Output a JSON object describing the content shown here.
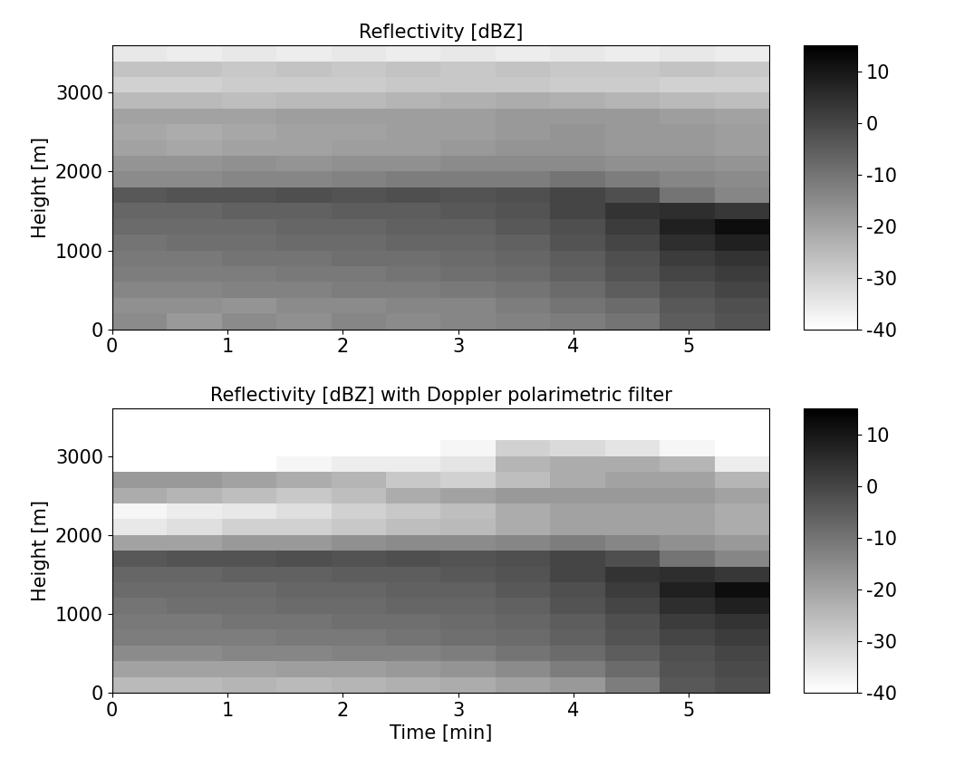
{
  "chart_data": [
    {
      "type": "heatmap",
      "title": "Reflectivity [dBZ]",
      "ylabel": "Height [m]",
      "x": [
        0,
        0.475,
        0.95,
        1.425,
        1.9,
        2.375,
        2.85,
        3.325,
        3.8,
        4.275,
        4.75,
        5.225,
        5.7
      ],
      "y": [
        0,
        200,
        400,
        600,
        800,
        1000,
        1200,
        1400,
        1600,
        1800,
        2000,
        2200,
        2400,
        2600,
        2800,
        3000,
        3200,
        3400,
        3600
      ],
      "cells": [
        [
          -15,
          -18,
          -15,
          -16,
          -14,
          -15,
          -14,
          -13,
          -12,
          -10,
          -5,
          -3
        ],
        [
          -16,
          -16,
          -17,
          -15,
          -15,
          -14,
          -14,
          -12,
          -10,
          -8,
          -4,
          -2
        ],
        [
          -14,
          -14,
          -13,
          -13,
          -12,
          -12,
          -11,
          -10,
          -8,
          -5,
          -2,
          0
        ],
        [
          -12,
          -12,
          -12,
          -11,
          -11,
          -10,
          -9,
          -8,
          -6,
          -3,
          0,
          2
        ],
        [
          -11,
          -11,
          -10,
          -10,
          -9,
          -9,
          -8,
          -7,
          -5,
          -2,
          2,
          4
        ],
        [
          -10,
          -9,
          -9,
          -8,
          -8,
          -7,
          -7,
          -6,
          -3,
          0,
          5,
          8
        ],
        [
          -8,
          -8,
          -8,
          -7,
          -7,
          -6,
          -6,
          -4,
          -2,
          2,
          8,
          12
        ],
        [
          -7,
          -7,
          -6,
          -6,
          -5,
          -5,
          -4,
          -3,
          0,
          4,
          5,
          3
        ],
        [
          -4,
          -3,
          -3,
          -2,
          -3,
          -2,
          -3,
          -2,
          0,
          -2,
          -10,
          -14
        ],
        [
          -15,
          -15,
          -14,
          -14,
          -13,
          -12,
          -12,
          -12,
          -10,
          -12,
          -14,
          -15
        ],
        [
          -17,
          -17,
          -16,
          -17,
          -16,
          -16,
          -15,
          -15,
          -15,
          -16,
          -16,
          -17
        ],
        [
          -20,
          -21,
          -20,
          -20,
          -19,
          -19,
          -18,
          -17,
          -17,
          -18,
          -18,
          -19
        ],
        [
          -21,
          -22,
          -21,
          -20,
          -20,
          -19,
          -19,
          -18,
          -17,
          -18,
          -18,
          -19
        ],
        [
          -20,
          -20,
          -20,
          -19,
          -19,
          -19,
          -19,
          -18,
          -18,
          -18,
          -19,
          -20
        ],
        [
          -25,
          -25,
          -26,
          -25,
          -25,
          -24,
          -23,
          -22,
          -23,
          -24,
          -25,
          -26
        ],
        [
          -30,
          -30,
          -29,
          -29,
          -29,
          -28,
          -28,
          -28,
          -29,
          -29,
          -30,
          -30
        ],
        [
          -27,
          -27,
          -28,
          -27,
          -28,
          -27,
          -28,
          -27,
          -28,
          -28,
          -27,
          -28
        ],
        [
          -35,
          -36,
          -35,
          -36,
          -35,
          -36,
          -35,
          -36,
          -35,
          -36,
          -35,
          -36
        ]
      ],
      "xlim": [
        0,
        5.7
      ],
      "ylim": [
        0,
        3600
      ],
      "xticks": [
        0,
        1,
        2,
        3,
        4,
        5
      ],
      "yticks": [
        0,
        1000,
        2000,
        3000
      ],
      "colorbar_range": [
        -40,
        15
      ],
      "colorbar_ticks": [
        -40,
        -30,
        -20,
        -10,
        0,
        10
      ]
    },
    {
      "type": "heatmap",
      "title": "Reflectivity [dBZ] with Doppler polarimetric filter",
      "xlabel": "Time [min]",
      "ylabel": "Height [m]",
      "x": [
        0,
        0.475,
        0.95,
        1.425,
        1.9,
        2.375,
        2.85,
        3.325,
        3.8,
        4.275,
        4.75,
        5.225,
        5.7
      ],
      "y": [
        0,
        200,
        400,
        600,
        800,
        1000,
        1200,
        1400,
        1600,
        1800,
        2000,
        2200,
        2400,
        2600,
        2800,
        3000,
        3200,
        3400,
        3600
      ],
      "cells": [
        [
          -25,
          -25,
          -24,
          -25,
          -24,
          -23,
          -22,
          -20,
          -18,
          -12,
          -4,
          -2
        ],
        [
          -20,
          -20,
          -20,
          -19,
          -19,
          -18,
          -17,
          -15,
          -12,
          -8,
          -3,
          -1
        ],
        [
          -15,
          -15,
          -14,
          -14,
          -13,
          -13,
          -12,
          -10,
          -8,
          -5,
          -2,
          0
        ],
        [
          -12,
          -12,
          -12,
          -11,
          -11,
          -10,
          -9,
          -8,
          -6,
          -3,
          0,
          2
        ],
        [
          -11,
          -11,
          -10,
          -10,
          -9,
          -9,
          -8,
          -7,
          -5,
          -2,
          2,
          4
        ],
        [
          -10,
          -9,
          -9,
          -8,
          -8,
          -7,
          -7,
          -6,
          -3,
          0,
          5,
          8
        ],
        [
          -8,
          -8,
          -8,
          -7,
          -7,
          -6,
          -6,
          -4,
          -2,
          2,
          8,
          12
        ],
        [
          -7,
          -7,
          -6,
          -6,
          -5,
          -5,
          -4,
          -3,
          0,
          4,
          5,
          3
        ],
        [
          -4,
          -3,
          -3,
          -2,
          -3,
          -2,
          -3,
          -2,
          0,
          -2,
          -10,
          -14
        ],
        [
          -20,
          -20,
          -18,
          -18,
          -16,
          -15,
          -15,
          -14,
          -12,
          -14,
          -16,
          -18
        ],
        [
          -35,
          -33,
          -30,
          -30,
          -28,
          -26,
          -25,
          -22,
          -20,
          -20,
          -20,
          -22
        ],
        [
          -38,
          -36,
          -35,
          -33,
          -30,
          -28,
          -26,
          -22,
          -20,
          -20,
          -20,
          -22
        ],
        [
          -22,
          -24,
          -26,
          -28,
          -26,
          -22,
          -20,
          -18,
          -18,
          -18,
          -18,
          -20
        ],
        [
          -18,
          -18,
          -20,
          -22,
          -24,
          -28,
          -30,
          -26,
          -22,
          -20,
          -20,
          -24
        ],
        [
          -40,
          -40,
          -40,
          -38,
          -36,
          -36,
          -34,
          -24,
          -22,
          -22,
          -24,
          -36
        ],
        [
          -40,
          -40,
          -40,
          -40,
          -40,
          -40,
          -38,
          -30,
          -32,
          -34,
          -38,
          -40
        ],
        [
          -40,
          -40,
          -40,
          -40,
          -40,
          -40,
          -40,
          -40,
          -40,
          -40,
          -40,
          -40
        ],
        [
          -40,
          -40,
          -40,
          -40,
          -40,
          -40,
          -40,
          -40,
          -40,
          -40,
          -40,
          -40
        ]
      ],
      "xlim": [
        0,
        5.7
      ],
      "ylim": [
        0,
        3600
      ],
      "xticks": [
        0,
        1,
        2,
        3,
        4,
        5
      ],
      "yticks": [
        0,
        1000,
        2000,
        3000
      ],
      "colorbar_range": [
        -40,
        15
      ],
      "colorbar_ticks": [
        -40,
        -30,
        -20,
        -10,
        0,
        10
      ]
    }
  ]
}
